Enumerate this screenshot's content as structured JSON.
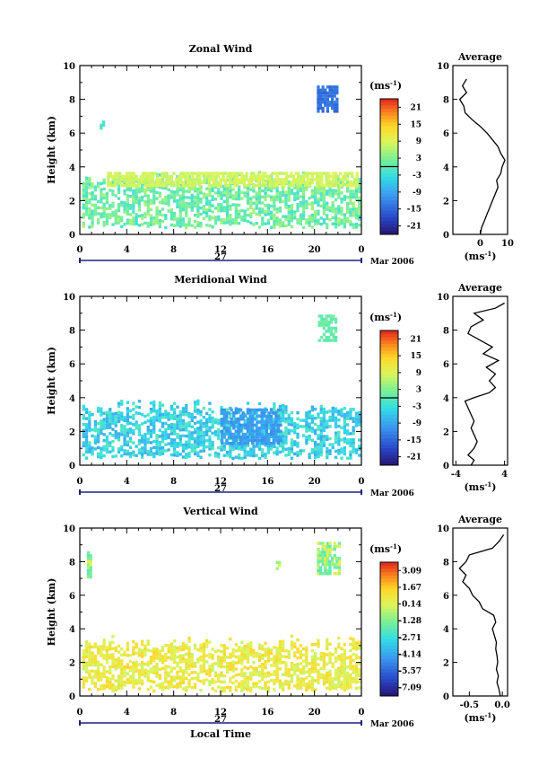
{
  "chart_data": [
    {
      "type": "heatmap",
      "title": "Zonal Wind",
      "ylabel": "Height (km)",
      "ylim": [
        0,
        10
      ],
      "yticks": [
        "0",
        "2",
        "4",
        "6",
        "8",
        "10"
      ],
      "xticks": [
        "0",
        "4",
        "8",
        "12",
        "16",
        "20",
        "0"
      ],
      "xlim": [
        0,
        24
      ],
      "date_day": "27",
      "date_label": "Mar 2006",
      "colorbar": {
        "unit": "(ms",
        "unit_exp": "-1",
        "unit_close": ")",
        "ticks": [
          "21",
          "15",
          "9",
          "3",
          "-3",
          "-9",
          "-15",
          "-21"
        ],
        "range": [
          -24,
          24
        ],
        "contour_at": 0
      },
      "field": {
        "layer_bottom_km": 0.3,
        "layer_top_km": 3.6,
        "mean": 1.5,
        "jitter": 4,
        "patches": [
          {
            "x": [
              20.2,
              21.8
            ],
            "y": [
              7.2,
              8.8
            ],
            "value": -14
          },
          {
            "x": [
              1.7,
              2.1
            ],
            "y": [
              6.2,
              6.6
            ],
            "value": -2
          },
          {
            "x": [
              2.3,
              23.5
            ],
            "y": [
              2.8,
              3.6
            ],
            "value": 8
          }
        ]
      },
      "average": {
        "title": "Average",
        "xlabel": "(ms",
        "xlabel_exp": "-1",
        "xlabel_close": ")",
        "xticks": [
          "0",
          "10"
        ],
        "xlim": [
          -10,
          10
        ],
        "ylim": [
          0,
          10
        ],
        "yticks": [
          "0",
          "2",
          "4",
          "6",
          "8",
          "10"
        ],
        "profile_height": [
          0.0,
          0.4,
          0.8,
          1.2,
          1.6,
          2.0,
          2.4,
          2.8,
          3.2,
          3.6,
          4.0,
          4.4,
          4.8,
          5.2,
          5.6,
          6.0,
          6.4,
          6.8,
          7.2,
          7.6,
          8.0,
          8.4,
          8.8,
          9.2
        ],
        "profile_value": [
          0.0,
          0.5,
          1.5,
          2.5,
          3.5,
          4.5,
          5.5,
          6.5,
          6.0,
          7.5,
          8.0,
          9.0,
          7.5,
          6.5,
          4.5,
          2.5,
          0.0,
          -3.0,
          -5.5,
          -6.0,
          -7.5,
          -5.0,
          -6.5,
          -5.0
        ]
      }
    },
    {
      "type": "heatmap",
      "title": "Meridional Wind",
      "ylabel": "Height (km)",
      "ylim": [
        0,
        10
      ],
      "yticks": [
        "0",
        "2",
        "4",
        "6",
        "8",
        "10"
      ],
      "xticks": [
        "0",
        "4",
        "8",
        "12",
        "16",
        "20",
        "0"
      ],
      "xlim": [
        0,
        24
      ],
      "date_day": "27",
      "date_label": "Mar 2006",
      "colorbar": {
        "unit": "(ms",
        "unit_exp": "-1",
        "unit_close": ")",
        "ticks": [
          "21",
          "15",
          "9",
          "3",
          "-3",
          "-9",
          "-15",
          "-21"
        ],
        "range": [
          -24,
          24
        ],
        "contour_at": 0
      },
      "field": {
        "layer_bottom_km": 0.3,
        "layer_top_km": 3.8,
        "mean": -4.5,
        "jitter": 4,
        "patches": [
          {
            "x": [
              20.3,
              21.7
            ],
            "y": [
              7.3,
              8.8
            ],
            "value": 1
          },
          {
            "x": [
              12.0,
              17.0
            ],
            "y": [
              1.2,
              3.2
            ],
            "value": -10
          }
        ]
      },
      "average": {
        "title": "Average",
        "xlabel": "(ms",
        "xlabel_exp": "-1",
        "xlabel_close": ")",
        "xticks": [
          "-4",
          "4"
        ],
        "xlim": [
          -4.5,
          4.5
        ],
        "ylim": [
          0,
          10
        ],
        "yticks": [
          "0",
          "2",
          "4",
          "6",
          "8",
          "10"
        ],
        "profile_height": [
          0.0,
          0.3,
          0.6,
          1.0,
          1.4,
          1.8,
          2.2,
          2.6,
          3.0,
          3.4,
          3.8,
          4.0,
          4.3,
          4.6,
          5.0,
          5.4,
          5.8,
          6.2,
          6.6,
          7.0,
          7.4,
          7.8,
          8.2,
          8.6,
          9.0,
          9.3,
          9.6
        ],
        "profile_value": [
          -1.5,
          -1.0,
          -2.0,
          -1.0,
          -0.5,
          -1.0,
          -1.5,
          -1.0,
          -1.5,
          -2.0,
          -2.5,
          -1.0,
          1.5,
          2.5,
          1.5,
          2.5,
          1.0,
          3.0,
          0.5,
          2.0,
          0.0,
          -2.0,
          -1.5,
          0.5,
          -1.0,
          2.5,
          4.0
        ]
      }
    },
    {
      "type": "heatmap",
      "title": "Vertical Wind",
      "ylabel": "Height (km)",
      "xlabel": "Local Time",
      "ylim": [
        0,
        10
      ],
      "yticks": [
        "0",
        "2",
        "4",
        "6",
        "8",
        "10"
      ],
      "xticks": [
        "0",
        "4",
        "8",
        "12",
        "16",
        "20",
        "0"
      ],
      "xlim": [
        0,
        24
      ],
      "date_day": "27",
      "date_label": "Mar 2006",
      "colorbar": {
        "unit": "(ms",
        "unit_exp": "-1",
        "unit_close": ")",
        "ticks": [
          "3.09",
          "1.67",
          "0.14",
          "-1.28",
          "-2.71",
          "-4.14",
          "-5.57",
          "-7.09"
        ],
        "range": [
          -7.8,
          3.8
        ],
        "contour_at": null
      },
      "field": {
        "layer_bottom_km": 0.2,
        "layer_top_km": 3.5,
        "mean": 0.6,
        "jitter": 0.9,
        "patches": [
          {
            "x": [
              20.2,
              22.0
            ],
            "y": [
              7.2,
              9.0
            ],
            "value": -0.8
          },
          {
            "x": [
              0.6,
              1.0
            ],
            "y": [
              7.0,
              8.5
            ],
            "value": -0.6
          },
          {
            "x": [
              16.7,
              17.0
            ],
            "y": [
              7.5,
              7.9
            ],
            "value": -0.5
          }
        ]
      },
      "average": {
        "title": "Average",
        "xlabel": "(ms",
        "xlabel_exp": "-1",
        "xlabel_close": ")",
        "xticks": [
          "-0.5",
          "0.0"
        ],
        "xlim": [
          -0.75,
          0.08
        ],
        "ylim": [
          0,
          10
        ],
        "yticks": [
          "0",
          "2",
          "4",
          "6",
          "8",
          "10"
        ],
        "profile_height": [
          0.0,
          0.4,
          0.8,
          1.2,
          1.6,
          2.0,
          2.4,
          2.8,
          3.2,
          3.6,
          4.0,
          4.4,
          4.8,
          5.2,
          5.6,
          6.0,
          6.4,
          6.8,
          7.2,
          7.6,
          8.0,
          8.4,
          8.8,
          9.2,
          9.6
        ],
        "profile_value": [
          -0.03,
          -0.05,
          -0.08,
          -0.06,
          -0.09,
          -0.07,
          -0.08,
          -0.1,
          -0.09,
          -0.12,
          -0.15,
          -0.1,
          -0.13,
          -0.3,
          -0.35,
          -0.45,
          -0.5,
          -0.6,
          -0.55,
          -0.65,
          -0.55,
          -0.5,
          -0.15,
          -0.05,
          0.02
        ]
      }
    }
  ]
}
